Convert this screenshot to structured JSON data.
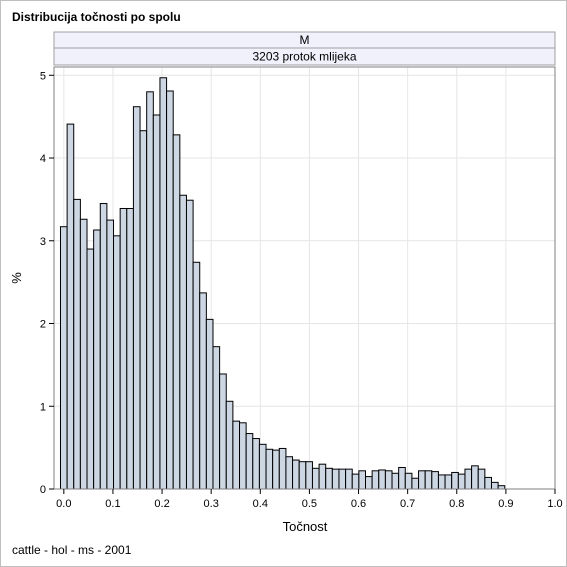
{
  "chart_data": {
    "type": "bar",
    "title": "Distribucija točnosti po spolu",
    "panel_headers": [
      "M",
      "3203 protok mlijeka"
    ],
    "xlabel": "Točnost",
    "ylabel": "%",
    "footnote": "cattle - hol - ms - 2001",
    "xlim": [
      -0.02,
      1.0
    ],
    "ylim": [
      0,
      5.1
    ],
    "bin_width": 0.0135,
    "bin_start": -0.0068,
    "xticks": [
      "0.0",
      "0.1",
      "0.2",
      "0.3",
      "0.4",
      "0.5",
      "0.6",
      "0.7",
      "0.8",
      "0.9",
      "1.0"
    ],
    "yticks": [
      "0",
      "1",
      "2",
      "3",
      "4",
      "5"
    ],
    "grid": true,
    "values": [
      3.17,
      4.41,
      3.5,
      3.26,
      2.9,
      3.13,
      3.45,
      3.25,
      3.06,
      3.39,
      3.39,
      4.62,
      4.33,
      4.8,
      4.52,
      4.97,
      4.81,
      4.28,
      3.55,
      3.49,
      2.74,
      2.37,
      2.05,
      1.72,
      1.39,
      1.06,
      0.82,
      0.8,
      0.67,
      0.61,
      0.54,
      0.48,
      0.47,
      0.49,
      0.39,
      0.35,
      0.33,
      0.33,
      0.25,
      0.3,
      0.25,
      0.24,
      0.24,
      0.24,
      0.18,
      0.22,
      0.15,
      0.22,
      0.23,
      0.22,
      0.19,
      0.26,
      0.19,
      0.13,
      0.22,
      0.22,
      0.21,
      0.17,
      0.17,
      0.2,
      0.18,
      0.24,
      0.28,
      0.24,
      0.14,
      0.08,
      0.04
    ],
    "colors": {
      "bar_fill": "#cdd6e3",
      "bar_stroke": "#000000",
      "grid": "#e6e6e6",
      "header_fill": "#f0f1fb"
    }
  }
}
